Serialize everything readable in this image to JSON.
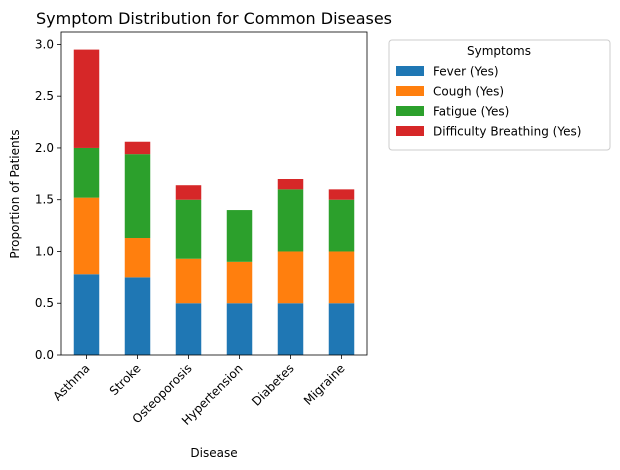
{
  "chart_data": {
    "type": "bar",
    "stacked": true,
    "title": "Symptom Distribution for Common Diseases",
    "xlabel": "Disease",
    "ylabel": "Proportion of Patients",
    "ylim": [
      0,
      3.12
    ],
    "yticks": [
      "0.0",
      "0.5",
      "1.0",
      "1.5",
      "2.0",
      "2.5",
      "3.0"
    ],
    "ytick_values": [
      0,
      0.5,
      1.0,
      1.5,
      2.0,
      2.5,
      3.0
    ],
    "categories": [
      "Asthma",
      "Stroke",
      "Osteoporosis",
      "Hypertension",
      "Diabetes",
      "Migraine"
    ],
    "legend": {
      "title": "Symptoms",
      "placement": "outside-right"
    },
    "grid": false,
    "series": [
      {
        "name": "Fever (Yes)",
        "color": "#1f77b4",
        "values": [
          0.78,
          0.75,
          0.5,
          0.5,
          0.5,
          0.5
        ]
      },
      {
        "name": "Cough (Yes)",
        "color": "#ff7f0e",
        "values": [
          0.74,
          0.38,
          0.43,
          0.4,
          0.5,
          0.5
        ]
      },
      {
        "name": "Fatigue (Yes)",
        "color": "#2ca02c",
        "values": [
          0.48,
          0.81,
          0.57,
          0.5,
          0.6,
          0.5
        ]
      },
      {
        "name": "Difficulty Breathing (Yes)",
        "color": "#d62728",
        "values": [
          0.95,
          0.12,
          0.14,
          0.0,
          0.1,
          0.1
        ]
      }
    ]
  }
}
